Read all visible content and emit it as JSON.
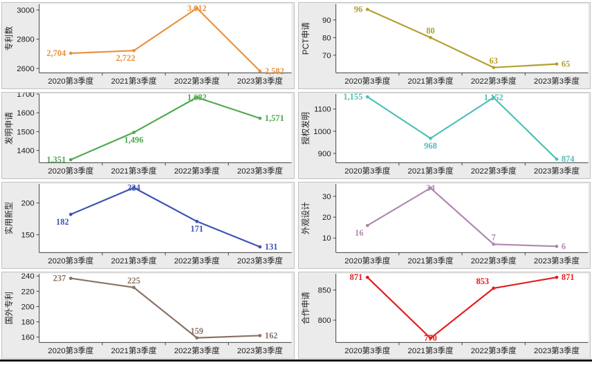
{
  "page": {
    "background": "#ffffff",
    "x_categories": [
      "2020第3季度",
      "2021第3季度",
      "2022第3季度",
      "2023第3季度"
    ]
  },
  "chart_data": [
    {
      "type": "line",
      "title": "专利数",
      "ylabel": "专利数",
      "categories": [
        "2020第3季度",
        "2021第3季度",
        "2022第3季度",
        "2023第3季度"
      ],
      "values": [
        2704,
        2722,
        3012,
        2582
      ],
      "value_labels": [
        "2,704",
        "2,722",
        "3,012",
        "2,582"
      ],
      "label_pos": [
        "left",
        "below-left",
        "on",
        "right"
      ],
      "color": "#E8923C",
      "yticks": [
        2600,
        2800,
        3000
      ],
      "ytick_labels": [
        "2600",
        "2800",
        "3000"
      ],
      "ylim": [
        2570,
        3040
      ],
      "grid": false,
      "legend": "none"
    },
    {
      "type": "line",
      "title": "PCT申请",
      "ylabel": "PCT申请",
      "categories": [
        "2020第3季度",
        "2021第3季度",
        "2022第3季度",
        "2023第3季度"
      ],
      "values": [
        96,
        80,
        63,
        65
      ],
      "value_labels": [
        "96",
        "80",
        "63",
        "65"
      ],
      "label_pos": [
        "left",
        "above",
        "above",
        "right"
      ],
      "color": "#B3A02F",
      "yticks": [
        70,
        80,
        90
      ],
      "ytick_labels": [
        "70",
        "80",
        "90"
      ],
      "ylim": [
        60,
        99
      ],
      "grid": false,
      "legend": "none"
    },
    {
      "type": "line",
      "title": "发明申请",
      "ylabel": "发明申请",
      "categories": [
        "2020第3季度",
        "2021第3季度",
        "2022第3季度",
        "2023第3季度"
      ],
      "values": [
        1351,
        1496,
        1682,
        1571
      ],
      "value_labels": [
        "1,351",
        "1,496",
        "1,682",
        "1,571"
      ],
      "label_pos": [
        "left",
        "below",
        "on",
        "right"
      ],
      "color": "#4FA84F",
      "yticks": [
        1400,
        1500,
        1600,
        1700
      ],
      "ytick_labels": [
        "1400",
        "1500",
        "1600",
        "1700"
      ],
      "ylim": [
        1335,
        1700
      ],
      "grid": false,
      "legend": "none"
    },
    {
      "type": "line",
      "title": "授权发明",
      "ylabel": "授权发明",
      "categories": [
        "2020第3季度",
        "2021第3季度",
        "2022第3季度",
        "2023第3季度"
      ],
      "values": [
        1155,
        968,
        1152,
        874
      ],
      "value_labels": [
        "1,155",
        "968",
        "1,152",
        "874"
      ],
      "label_pos": [
        "left",
        "below",
        "on",
        "right"
      ],
      "color": "#4BBFB5",
      "yticks": [
        900,
        1000,
        1100
      ],
      "ytick_labels": [
        "900",
        "1000",
        "1100"
      ],
      "ylim": [
        858,
        1168
      ],
      "grid": false,
      "legend": "none"
    },
    {
      "type": "line",
      "title": "实用新型",
      "ylabel": "实用新型",
      "categories": [
        "2020第3季度",
        "2021第3季度",
        "2022第3季度",
        "2023第3季度"
      ],
      "values": [
        182,
        224,
        171,
        131
      ],
      "value_labels": [
        "182",
        "224",
        "171",
        "131"
      ],
      "label_pos": [
        "below-left",
        "on",
        "below",
        "right"
      ],
      "color": "#3C52B4",
      "yticks": [
        150,
        200
      ],
      "ytick_labels": [
        "150",
        "200"
      ],
      "ylim": [
        122,
        230
      ],
      "grid": false,
      "legend": "none"
    },
    {
      "type": "line",
      "title": "外观设计",
      "ylabel": "外观设计",
      "categories": [
        "2020第3季度",
        "2021第3季度",
        "2022第3季度",
        "2023第3季度"
      ],
      "values": [
        16,
        34,
        7,
        6
      ],
      "value_labels": [
        "16",
        "34",
        "7",
        "6"
      ],
      "label_pos": [
        "below-left",
        "on",
        "above",
        "right"
      ],
      "color": "#AE87AE",
      "yticks": [
        10,
        20,
        30
      ],
      "ytick_labels": [
        "10",
        "20",
        "30"
      ],
      "ylim": [
        3,
        36
      ],
      "grid": false,
      "legend": "none"
    },
    {
      "type": "line",
      "title": "国外专利",
      "ylabel": "国外专利",
      "categories": [
        "2020第3季度",
        "2021第3季度",
        "2022第3季度",
        "2023第3季度"
      ],
      "values": [
        237,
        225,
        159,
        162
      ],
      "value_labels": [
        "237",
        "225",
        "159",
        "162"
      ],
      "label_pos": [
        "left",
        "above",
        "above",
        "right"
      ],
      "color": "#8A7164",
      "yticks": [
        160,
        180,
        200,
        220,
        240
      ],
      "ytick_labels": [
        "160",
        "180",
        "200",
        "220",
        "240"
      ],
      "ylim": [
        153,
        243
      ],
      "grid": false,
      "legend": "none"
    },
    {
      "type": "line",
      "title": "合作申请",
      "ylabel": "合作申请",
      "categories": [
        "2020第3季度",
        "2021第3季度",
        "2022第3季度",
        "2023第3季度"
      ],
      "values": [
        871,
        770,
        853,
        871
      ],
      "value_labels": [
        "871",
        "770",
        "853",
        "871"
      ],
      "label_pos": [
        "left",
        "on",
        "above-left",
        "right"
      ],
      "color": "#E41B1B",
      "yticks": [
        800,
        850
      ],
      "ytick_labels": [
        "800",
        "850"
      ],
      "ylim": [
        763,
        877
      ],
      "grid": false,
      "legend": "none"
    }
  ],
  "style": {
    "panel_bg": "#ebebeb",
    "plot_bg": "#ffffff",
    "axis_color": "#404040",
    "tick_label_color": "#1a1a1a",
    "panel_border": "#c0c0c0"
  }
}
